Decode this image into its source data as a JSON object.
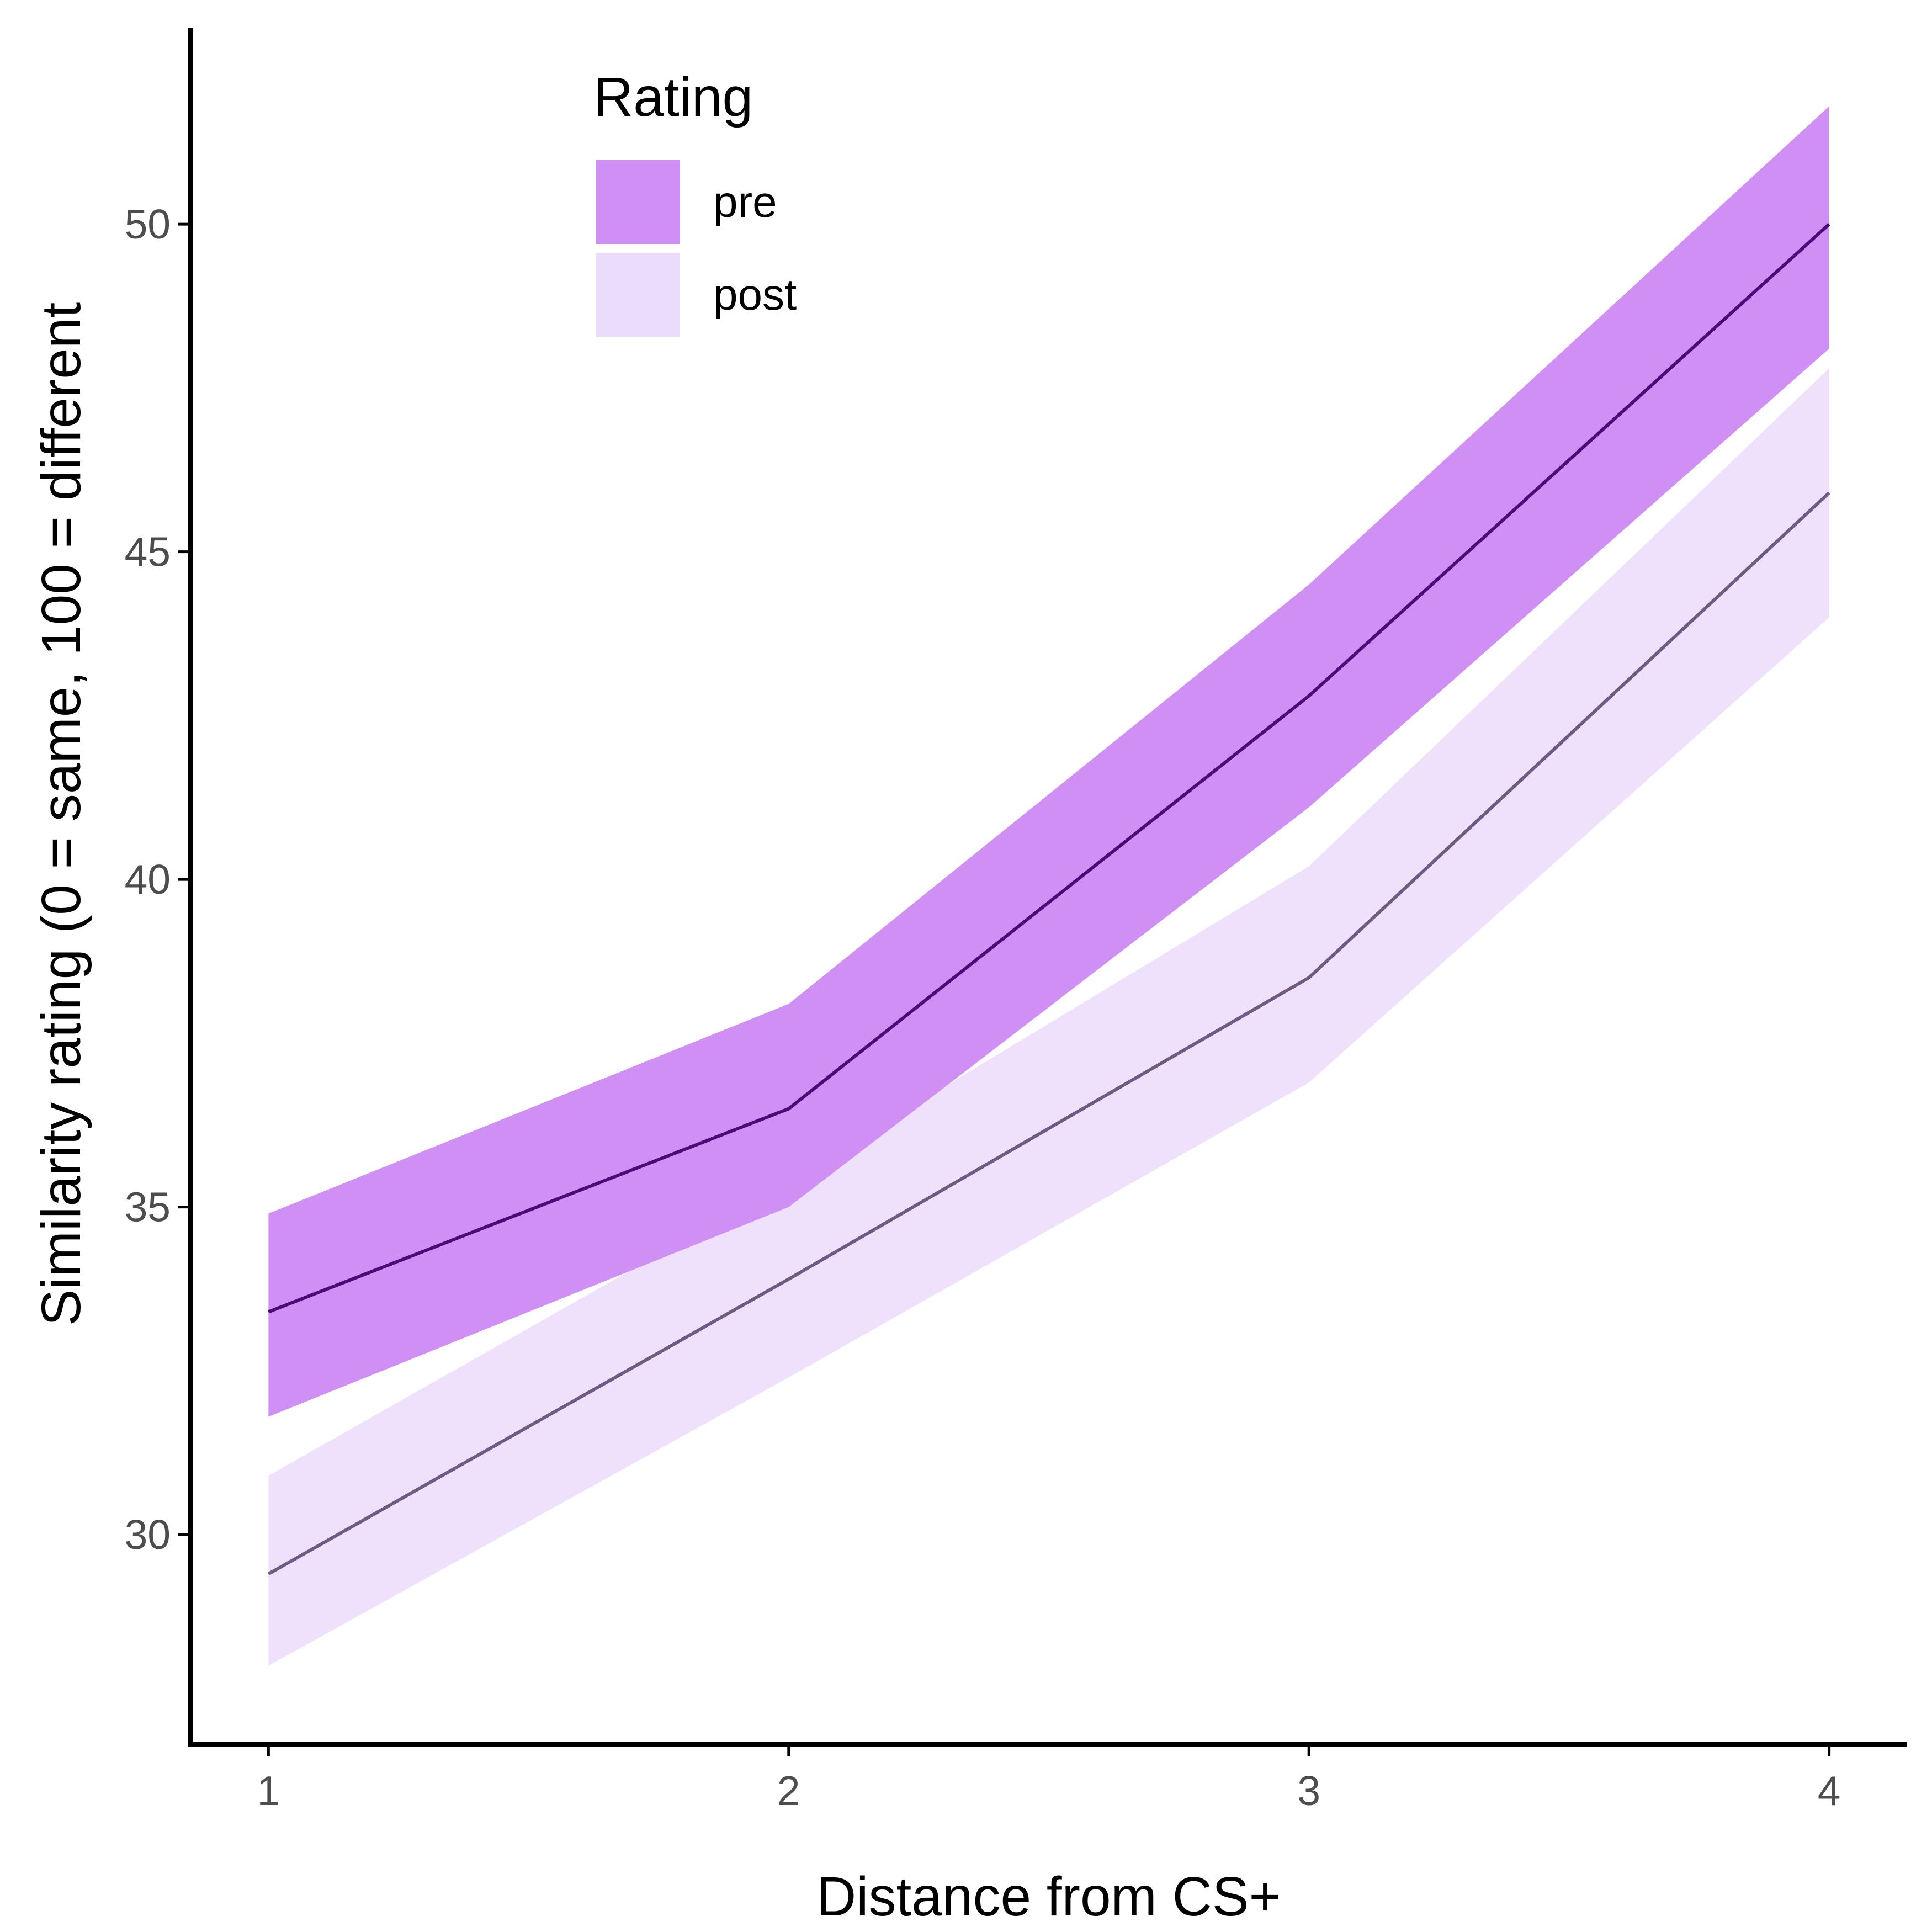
{
  "chart_data": {
    "type": "line",
    "title": "",
    "xlabel": "Distance from CS+",
    "ylabel": "Similarity rating (0 = same, 100 = different",
    "x": [
      1,
      2,
      3,
      4
    ],
    "x_ticks": [
      "1",
      "2",
      "3",
      "4"
    ],
    "y_ticks": [
      "30",
      "35",
      "40",
      "45",
      "50"
    ],
    "xlim": [
      0.85,
      4.15
    ],
    "ylim": [
      26.8,
      53.0
    ],
    "grid": false,
    "legend": {
      "title": "Rating",
      "position": "top-left"
    },
    "series": [
      {
        "name": "pre",
        "values": [
          33.4,
          36.5,
          42.8,
          50.0
        ],
        "lower": [
          31.8,
          35.0,
          41.1,
          48.1
        ],
        "upper": [
          34.9,
          38.1,
          44.5,
          51.8
        ],
        "line_color": "#4a0a78",
        "ribbon_color": "#cf8ff5"
      },
      {
        "name": "post",
        "values": [
          29.4,
          33.9,
          38.5,
          45.9
        ],
        "lower": [
          28.0,
          32.4,
          36.9,
          44.0
        ],
        "upper": [
          30.9,
          35.4,
          40.2,
          47.8
        ],
        "line_color": "#6e5a82",
        "ribbon_color": "#ecdcfc"
      }
    ]
  }
}
